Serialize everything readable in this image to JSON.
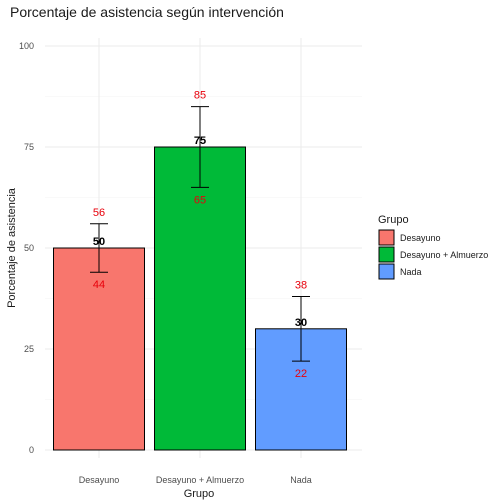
{
  "chart_data": {
    "type": "bar",
    "title": "Porcentaje de asistencia según intervención",
    "xlabel": "Grupo",
    "ylabel": "Porcentaje de asistencia",
    "categories": [
      "Desayuno",
      "Desayuno + Almuerzo",
      "Nada"
    ],
    "values": [
      50,
      75,
      30
    ],
    "upper": [
      56,
      85,
      38
    ],
    "lower": [
      44,
      65,
      22
    ],
    "colors": [
      "#F8766D",
      "#00BA38",
      "#619CFF"
    ],
    "ci_label_color": "#e8000b",
    "ylim": [
      0,
      100
    ],
    "yticks": [
      0,
      25,
      50,
      75,
      100
    ],
    "grid": true,
    "legend": {
      "title": "Grupo",
      "position": "right",
      "entries": [
        "Desayuno",
        "Desayuno + Almuerzo",
        "Nada"
      ]
    }
  }
}
